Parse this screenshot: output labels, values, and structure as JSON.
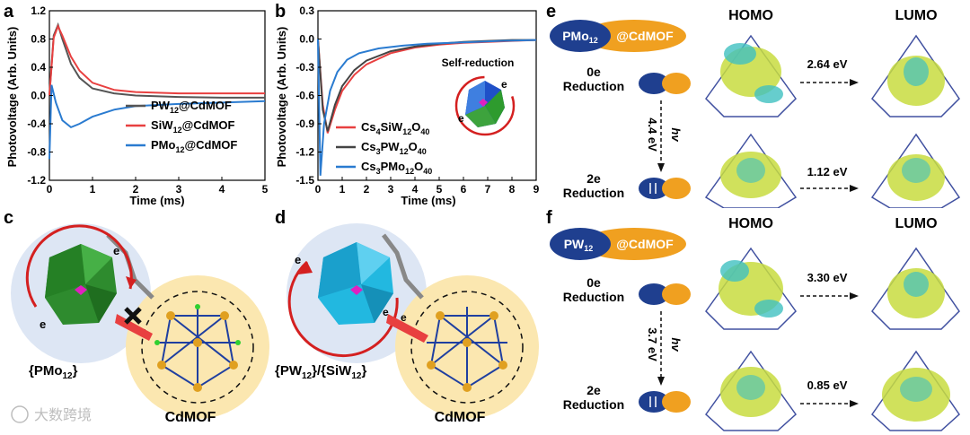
{
  "panels": {
    "a": {
      "label": "a",
      "chart_data": {
        "type": "line",
        "ylabel": "Photovoltage (Arb. Units)",
        "xlabel": "Time (ms)",
        "xlim": [
          0,
          5
        ],
        "ylim": [
          -1.2,
          1.2
        ],
        "xticks": [
          "0",
          "1",
          "2",
          "3",
          "4",
          "5"
        ],
        "yticks": [
          "1.2",
          "0.8",
          "0.4",
          "0.0",
          "-0.4",
          "-0.8",
          "-1.2"
        ],
        "legend_position": "bottom-right",
        "series": [
          {
            "name": "PW12@CdMOF",
            "color": "#555555",
            "x": [
              0,
              0.1,
              0.2,
              0.3,
              0.5,
              0.7,
              1.0,
              1.5,
              2.0,
              3.0,
              4.0,
              5.0
            ],
            "y": [
              0.0,
              0.85,
              1.0,
              0.8,
              0.45,
              0.25,
              0.1,
              0.03,
              0.0,
              -0.02,
              -0.03,
              -0.03
            ]
          },
          {
            "name": "SiW12@CdMOF",
            "color": "#e84040",
            "x": [
              0,
              0.1,
              0.2,
              0.3,
              0.5,
              0.7,
              1.0,
              1.5,
              2.0,
              3.0,
              4.0,
              5.0
            ],
            "y": [
              0.0,
              0.82,
              0.98,
              0.85,
              0.55,
              0.35,
              0.18,
              0.08,
              0.05,
              0.03,
              0.03,
              0.03
            ]
          },
          {
            "name": "PMo12@CdMOF",
            "color": "#2a7bd0",
            "x": [
              0,
              0.05,
              0.15,
              0.3,
              0.5,
              0.7,
              1.0,
              1.5,
              2.0,
              3.0,
              4.0,
              5.0
            ],
            "y": [
              -0.9,
              0.15,
              -0.1,
              -0.35,
              -0.45,
              -0.4,
              -0.3,
              -0.2,
              -0.15,
              -0.12,
              -0.1,
              -0.08
            ]
          }
        ]
      },
      "legend_entries": [
        {
          "base": "PW",
          "sub": "12",
          "rest": "@CdMOF"
        },
        {
          "base": "SiW",
          "sub": "12",
          "rest": "@CdMOF"
        },
        {
          "base": "PMo",
          "sub": "12",
          "rest": "@CdMOF"
        }
      ]
    },
    "b": {
      "label": "b",
      "inset_label": "Self-reduction",
      "electron": "e",
      "chart_data": {
        "type": "line",
        "ylabel": "Photovoltage (Arb. Units)",
        "xlabel": "Time (ms)",
        "xlim": [
          0,
          9
        ],
        "ylim": [
          -1.5,
          0.3
        ],
        "xticks": [
          "0",
          "1",
          "2",
          "3",
          "4",
          "5",
          "6",
          "7",
          "8",
          "9"
        ],
        "yticks": [
          "0.3",
          "0.0",
          "-0.3",
          "-0.6",
          "-0.9",
          "-1.2",
          "-1.5"
        ],
        "legend_position": "bottom-right",
        "series": [
          {
            "name": "Cs4SiW12O40",
            "color": "#e84040",
            "x": [
              0,
              0.2,
              0.4,
              0.7,
              1.0,
              1.5,
              2.0,
              3.0,
              4.0,
              5.0,
              6.0,
              7.0,
              8.0,
              9.0
            ],
            "y": [
              0.0,
              -0.7,
              -1.0,
              -0.75,
              -0.55,
              -0.38,
              -0.27,
              -0.15,
              -0.09,
              -0.06,
              -0.04,
              -0.03,
              -0.02,
              -0.01
            ]
          },
          {
            "name": "Cs3PW12O40",
            "color": "#444444",
            "x": [
              0,
              0.2,
              0.4,
              0.7,
              1.0,
              1.5,
              2.0,
              3.0,
              4.0,
              5.0,
              6.0,
              7.0,
              8.0,
              9.0
            ],
            "y": [
              0.0,
              -0.75,
              -0.98,
              -0.7,
              -0.5,
              -0.33,
              -0.23,
              -0.13,
              -0.08,
              -0.05,
              -0.03,
              -0.02,
              -0.01,
              -0.01
            ]
          },
          {
            "name": "Cs3PMo12O40",
            "color": "#2a7bd0",
            "x": [
              0,
              0.1,
              0.25,
              0.5,
              0.8,
              1.2,
              1.7,
              2.5,
              3.5,
              4.5,
              5.5,
              6.5,
              7.5,
              9.0
            ],
            "y": [
              0.0,
              -1.45,
              -0.9,
              -0.55,
              -0.35,
              -0.22,
              -0.15,
              -0.1,
              -0.07,
              -0.05,
              -0.04,
              -0.03,
              -0.02,
              -0.01
            ]
          }
        ]
      },
      "legend_entries": [
        {
          "parts": [
            [
              "Cs",
              ""
            ],
            [
              "4",
              "sub"
            ],
            [
              "SiW",
              ""
            ],
            [
              "12",
              "sub"
            ],
            [
              "O",
              ""
            ],
            [
              "40",
              "sub"
            ]
          ]
        },
        {
          "parts": [
            [
              "Cs",
              ""
            ],
            [
              "3",
              "sub"
            ],
            [
              "PW",
              ""
            ],
            [
              "12",
              "sub"
            ],
            [
              "O",
              ""
            ],
            [
              "40",
              "sub"
            ]
          ]
        },
        {
          "parts": [
            [
              "Cs",
              ""
            ],
            [
              "3",
              "sub"
            ],
            [
              "PMo",
              ""
            ],
            [
              "12",
              "sub"
            ],
            [
              "O",
              ""
            ],
            [
              "40",
              "sub"
            ]
          ]
        }
      ]
    },
    "c": {
      "label": "c",
      "poly_base": "{PMo",
      "poly_sub": "12",
      "poly_end": "}",
      "mof": "CdMOF",
      "electron": "e"
    },
    "d": {
      "label": "d",
      "poly_parts": [
        [
          "{PW",
          ""
        ],
        [
          "12",
          "sub"
        ],
        [
          "}/{SiW",
          ""
        ],
        [
          "12",
          "sub"
        ],
        [
          "}",
          ""
        ]
      ],
      "mof": "CdMOF",
      "electron": "e"
    },
    "e": {
      "label": "e",
      "pill_base": "PMo",
      "pill_sub": "12",
      "pill_rest": "@CdMOF",
      "homo": "HOMO",
      "lumo": "LUMO",
      "state1_line1": "0e",
      "state1_line2": "Reduction",
      "state2_line1": "2e",
      "state2_line2": "Reduction",
      "gap1": "2.64 eV",
      "gap2": "1.12 eV",
      "hv": "hv",
      "excitation": "4.4 eV"
    },
    "f": {
      "label": "f",
      "pill_base": "PW",
      "pill_sub": "12",
      "pill_rest": "@CdMOF",
      "homo": "HOMO",
      "lumo": "LUMO",
      "state1_line1": "0e",
      "state1_line2": "Reduction",
      "state2_line1": "2e",
      "state2_line2": "Reduction",
      "gap1": "3.30 eV",
      "gap2": "0.85 eV",
      "hv": "hv",
      "excitation": "3.7 eV"
    }
  },
  "watermark": "大数跨境",
  "colors": {
    "navy": "#1f3f8f",
    "orange": "#f0a020",
    "red": "#d42020",
    "green": "#2e8b2e",
    "cyan": "#22b8e0",
    "mof_bg": "#fbe7b0"
  }
}
